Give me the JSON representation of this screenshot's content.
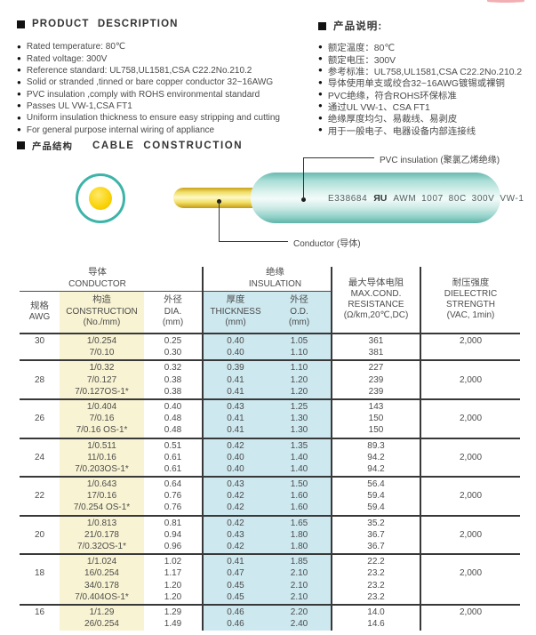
{
  "product_description": {
    "title_en": "PRODUCT DESCRIPTION",
    "title_zh": "产品说明:",
    "items_en": [
      "Rated temperature: 80℃",
      "Rated voltage: 300V",
      "Reference standard: UL758,UL1581,CSA C22.2No.210.2",
      "Solid or stranded ,tinned or bare copper conductor 32~16AWG",
      "PVC insulation ,comply with ROHS environmental standard",
      "Passes UL VW-1,CSA FT1",
      "Uniform insulation thickness to ensure easy stripping and cutting",
      "For general purpose internal wiring of appliance"
    ],
    "items_zh": [
      "额定温度：80℃",
      "额定电压：300V",
      "参考标准：UL758,UL1581,CSA C22.2No.210.2",
      "导体使用单支或绞合32~16AWG镀锡或裸铜",
      "PVC绝缘，符合ROHS环保标准",
      "通过UL VW-1、CSA FT1",
      "绝缘厚度均匀、易裁线、易剥皮",
      "用于一般电子、电器设备内部连接线"
    ]
  },
  "construction_section": {
    "title_zh": "产品结构",
    "title_en": "CABLE CONSTRUCTION",
    "pvc_label": "PVC insulation (聚氯乙烯绝缘)",
    "conductor_label": "Conductor (导体)",
    "cable_print": {
      "cert_no": "E338684",
      "ul_mark": "ЯU",
      "spec": "AWM 1007 80C 300V VW-1"
    }
  },
  "colors": {
    "insulation_teal": "#3db4a9",
    "conductor_yellow": "#f9d206",
    "construction_band": "#f8f3d2",
    "insulation_band": "#cde8ef"
  },
  "table": {
    "groups": {
      "conductor": {
        "zh": "导体",
        "en": "CONDUCTOR"
      },
      "insulation": {
        "zh": "绝缘",
        "en": "INSULATION"
      }
    },
    "columns": {
      "awg": {
        "zh": "规格",
        "en": "AWG"
      },
      "construction": {
        "zh": "构造",
        "en": "CONSTRUCTION",
        "unit": "(No./mm)"
      },
      "dia": {
        "zh": "外径",
        "en": "DIA.",
        "unit": "(mm)"
      },
      "thickness": {
        "zh": "厚度",
        "en": "THICKNESS",
        "unit": "(mm)"
      },
      "od": {
        "zh": "外径",
        "en": "O.D.",
        "unit": "(mm)"
      },
      "resistance": {
        "zh": "最大导体电阻",
        "en1": "MAX.COND.",
        "en2": "RESISTANCE",
        "unit": "(Ω/km,20℃,DC)"
      },
      "dielectric": {
        "zh": "耐压强度",
        "en1": "DIELECTRIC",
        "en2": "STRENGTH",
        "unit": "(VAC, 1min)"
      }
    },
    "rows": [
      {
        "awg": "30",
        "construction": [
          "1/0.254",
          "7/0.10"
        ],
        "dia": [
          "0.25",
          "0.30"
        ],
        "thickness": [
          "0.40",
          "0.40"
        ],
        "od": [
          "1.05",
          "1.10"
        ],
        "resistance": [
          "361",
          "381"
        ],
        "dielectric": "2,000"
      },
      {
        "awg": "28",
        "construction": [
          "1/0.32",
          "7/0.127",
          "7/0.127OS-1*"
        ],
        "dia": [
          "0.32",
          "0.38",
          "0.38"
        ],
        "thickness": [
          "0.39",
          "0.41",
          "0.41"
        ],
        "od": [
          "1.10",
          "1.20",
          "1.20"
        ],
        "resistance": [
          "227",
          "239",
          "239"
        ],
        "dielectric": "2,000"
      },
      {
        "awg": "26",
        "construction": [
          "1/0.404",
          "7/0.16",
          "7/0.16 OS-1*"
        ],
        "dia": [
          "0.40",
          "0.48",
          "0.48"
        ],
        "thickness": [
          "0.43",
          "0.41",
          "0.41"
        ],
        "od": [
          "1.25",
          "1.30",
          "1.30"
        ],
        "resistance": [
          "143",
          "150",
          "150"
        ],
        "dielectric": "2,000"
      },
      {
        "awg": "24",
        "construction": [
          "1/0.511",
          "11/0.16",
          "7/0.203OS-1*"
        ],
        "dia": [
          "0.51",
          "0.61",
          "0.61"
        ],
        "thickness": [
          "0.42",
          "0.40",
          "0.40"
        ],
        "od": [
          "1.35",
          "1.40",
          "1.40"
        ],
        "resistance": [
          "89.3",
          "94.2",
          "94.2"
        ],
        "dielectric": "2,000"
      },
      {
        "awg": "22",
        "construction": [
          "1/0.643",
          "17/0.16",
          "7/0.254 OS-1*"
        ],
        "dia": [
          "0.64",
          "0.76",
          "0.76"
        ],
        "thickness": [
          "0.43",
          "0.42",
          "0.42"
        ],
        "od": [
          "1.50",
          "1.60",
          "1.60"
        ],
        "resistance": [
          "56.4",
          "59.4",
          "59.4"
        ],
        "dielectric": "2,000"
      },
      {
        "awg": "20",
        "construction": [
          "1/0.813",
          "21/0.178",
          "7/0.32OS-1*"
        ],
        "dia": [
          "0.81",
          "0.94",
          "0.96"
        ],
        "thickness": [
          "0.42",
          "0.43",
          "0.42"
        ],
        "od": [
          "1.65",
          "1.80",
          "1.80"
        ],
        "resistance": [
          "35.2",
          "36.7",
          "36.7"
        ],
        "dielectric": "2,000"
      },
      {
        "awg": "18",
        "construction": [
          "1/1.024",
          "16/0.254",
          "34/0.178",
          "7/0.404OS-1*"
        ],
        "dia": [
          "1.02",
          "1.17",
          "1.20",
          "1.20"
        ],
        "thickness": [
          "0.41",
          "0.47",
          "0.45",
          "0.45"
        ],
        "od": [
          "1.85",
          "2.10",
          "2.10",
          "2.10"
        ],
        "resistance": [
          "22.2",
          "23.2",
          "23.2",
          "23.2"
        ],
        "dielectric": "2,000"
      },
      {
        "awg": "16",
        "construction": [
          "1/1.29",
          "26/0.254"
        ],
        "dia": [
          "1.29",
          "1.49"
        ],
        "thickness": [
          "0.46",
          "0.46"
        ],
        "od": [
          "2.20",
          "2.40"
        ],
        "resistance": [
          "14.0",
          "14.6"
        ],
        "dielectric": "2,000"
      }
    ]
  }
}
